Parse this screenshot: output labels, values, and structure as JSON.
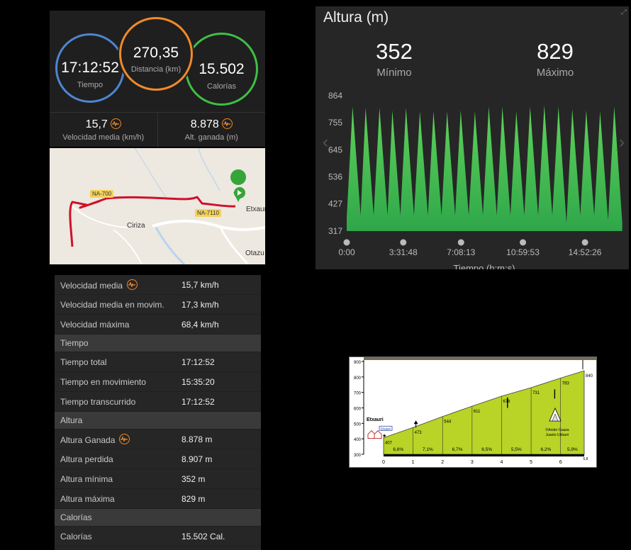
{
  "summary": {
    "time": {
      "value": "17:12:52",
      "label": "Tiempo"
    },
    "distance": {
      "value": "270,35",
      "label": "Distancia (km)"
    },
    "calories": {
      "value": "15.502",
      "label": "Calorías"
    },
    "avg_speed": {
      "value": "15,7",
      "label": "Velocidad media (km/h)"
    },
    "elev_gain": {
      "value": "8.878",
      "label": "Alt. ganada (m)"
    },
    "accent": "#f08a2a"
  },
  "map": {
    "road_labels": [
      "NA-700",
      "NA-7110"
    ],
    "places": [
      "Ciriza",
      "Etxauri",
      "Otazu"
    ],
    "route_color": "#d0112b",
    "marker_icon": "play-marker-icon"
  },
  "altitude": {
    "title": "Altura (m)",
    "min": {
      "value": "352",
      "label": "Mínimo"
    },
    "max": {
      "value": "829",
      "label": "Máximo"
    },
    "x_title": "Tiempo (h:m:s)"
  },
  "chart_data": {
    "type": "area",
    "title": "Altura (m)",
    "xlabel": "Tiempo (h:m:s)",
    "ylabel": "",
    "y_ticks": [
      317,
      427,
      536,
      645,
      755,
      864
    ],
    "ylim": [
      317,
      864
    ],
    "x_ticks": [
      "0:00",
      "3:31:48",
      "7:08:13",
      "10:59:53",
      "14:52:26"
    ],
    "xlim": [
      "0:00",
      "17:12:52"
    ],
    "series": [
      {
        "color": "#3fbf44",
        "x": [
          "0:00",
          "0:22",
          "0:52",
          "1:11",
          "1:41",
          "2:03",
          "2:33",
          "2:51",
          "3:21",
          "3:42",
          "4:12",
          "4:34",
          "5:04",
          "5:25",
          "5:55",
          "6:16",
          "6:46",
          "7:07",
          "7:37",
          "8:00",
          "8:30",
          "8:52",
          "9:22",
          "9:43",
          "10:13",
          "10:35",
          "11:05",
          "11:27",
          "11:57",
          "12:20",
          "12:50",
          "13:13",
          "13:43",
          "14:05",
          "14:35",
          "14:57",
          "15:27",
          "15:49",
          "16:19",
          "16:42",
          "17:12"
        ],
        "values": [
          370,
          820,
          380,
          815,
          380,
          815,
          380,
          805,
          380,
          815,
          380,
          800,
          380,
          800,
          380,
          800,
          380,
          805,
          380,
          800,
          380,
          820,
          380,
          820,
          380,
          800,
          380,
          820,
          380,
          825,
          380,
          820,
          350,
          810,
          380,
          805,
          380,
          800,
          360,
          820,
          350
        ]
      }
    ],
    "grid": false,
    "legend": "none"
  },
  "details": {
    "rows": [
      {
        "k": "Velocidad media",
        "v": "15,7 km/h",
        "icon": true
      },
      {
        "k": "Velocidad media en movim.",
        "v": "17,3 km/h"
      },
      {
        "k": "Velocidad máxima",
        "v": "68,4 km/h"
      },
      {
        "section": "Tiempo"
      },
      {
        "k": "Tiempo total",
        "v": "17:12:52"
      },
      {
        "k": "Tiempo en movimiento",
        "v": "15:35:20"
      },
      {
        "k": "Tiempo transcurrido",
        "v": "17:12:52"
      },
      {
        "section": "Altura"
      },
      {
        "k": "Altura Ganada",
        "v": "8.878 m",
        "icon": true
      },
      {
        "k": "Altura perdida",
        "v": "8.907 m"
      },
      {
        "k": "Altura mínima",
        "v": "352 m"
      },
      {
        "k": "Altura máxima",
        "v": "829 m"
      },
      {
        "section": "Calorías"
      },
      {
        "k": "Calorías",
        "v": "15.502 Cal."
      }
    ]
  },
  "profile": {
    "y_ticks": [
      "900",
      "800",
      "700",
      "600",
      "500",
      "400",
      "300"
    ],
    "x_ticks": [
      "0",
      "1",
      "2",
      "3",
      "4",
      "5",
      "6",
      "6,8"
    ],
    "points": [
      {
        "km": 0,
        "alt": 407,
        "label": "407"
      },
      {
        "km": 1,
        "alt": 473,
        "label": "473"
      },
      {
        "km": 2,
        "alt": 544,
        "label": "544"
      },
      {
        "km": 3,
        "alt": 611,
        "label": "611"
      },
      {
        "km": 4,
        "alt": 676,
        "label": "676"
      },
      {
        "km": 5,
        "alt": 731,
        "label": "731"
      },
      {
        "km": 6,
        "alt": 793,
        "label": "793"
      },
      {
        "km": 6.8,
        "alt": 840,
        "label": "840"
      }
    ],
    "gradients": [
      "6,6%",
      "7,1%",
      "6,7%",
      "6,5%",
      "5,5%",
      "6,2%",
      "5,9%"
    ],
    "start_name": "Etxauri",
    "sign": "Etxauri",
    "credit": [
      "©Ander Guaza",
      "Juanto Uribarri"
    ],
    "fill_color": "#b9d327"
  }
}
